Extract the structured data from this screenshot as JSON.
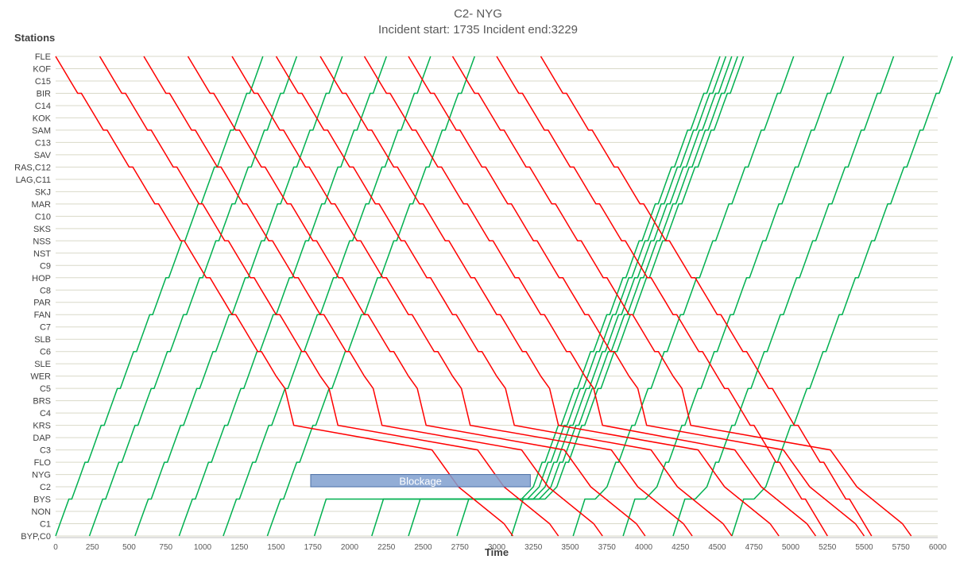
{
  "chart_data": {
    "type": "line",
    "title": "C2- NYG",
    "subtitle": "Incident start: 1735 Incident end:3229",
    "xlabel": "Time",
    "ylabel": "Stations",
    "xlim": [
      0,
      6000
    ],
    "xticks": [
      0,
      250,
      500,
      750,
      1000,
      1250,
      1500,
      1750,
      2000,
      2250,
      2500,
      2750,
      3000,
      3250,
      3500,
      3750,
      4000,
      4250,
      4500,
      4750,
      5000,
      5250,
      5500,
      5750,
      6000
    ],
    "stations": [
      "FLE",
      "KOF",
      "C15",
      "BIR",
      "C14",
      "KOK",
      "SAM",
      "C13",
      "SAV",
      "RAS,C12",
      "LAG,C11",
      "SKJ",
      "MAR",
      "C10",
      "SKS",
      "NSS",
      "NST",
      "C9",
      "HOP",
      "C8",
      "PAR",
      "FAN",
      "C7",
      "SLB",
      "C6",
      "SLE",
      "WER",
      "C5",
      "BRS",
      "C4",
      "KRS",
      "DAP",
      "C3",
      "FLO",
      "NYG",
      "C2",
      "BYS",
      "NON",
      "C1",
      "BYP,C0"
    ],
    "grid": true,
    "legend": "none",
    "blockage": {
      "label": "Blockage",
      "start": 1735,
      "end": 3229,
      "station_from": "NYG",
      "station_to": "C2"
    },
    "colors": {
      "southbound": "#ff0000",
      "northbound": "#00b050",
      "blockage": "#7f9fcf",
      "grid": "#d9d9c8"
    },
    "southbound_departures": [
      0,
      300,
      600,
      900,
      1200,
      1500,
      1800,
      2100,
      2400,
      2700,
      3000,
      3300
    ],
    "northbound_arrivals": [
      1240,
      1540,
      1840,
      2100,
      2410,
      2750,
      3040,
      3490,
      3980,
      4310,
      4760,
      5230,
      5580,
      5870
    ],
    "delayed_southbound_arrivals": [
      3110,
      3420,
      3720,
      4010,
      4330,
      4600,
      4920,
      5170,
      5500,
      5820
    ],
    "delayed_northbound_departures": [
      1760,
      2150,
      2400,
      2730,
      3100,
      3520,
      3860,
      4200,
      4600
    ]
  }
}
